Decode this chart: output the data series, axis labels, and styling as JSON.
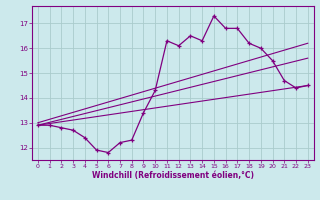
{
  "xlabel": "Windchill (Refroidissement éolien,°C)",
  "background_color": "#cce9ec",
  "line_color": "#800080",
  "grid_color": "#aacccc",
  "xlim": [
    -0.5,
    23.5
  ],
  "ylim": [
    11.5,
    17.7
  ],
  "yticks": [
    12,
    13,
    14,
    15,
    16,
    17
  ],
  "xticks": [
    0,
    1,
    2,
    3,
    4,
    5,
    6,
    7,
    8,
    9,
    10,
    11,
    12,
    13,
    14,
    15,
    16,
    17,
    18,
    19,
    20,
    21,
    22,
    23
  ],
  "hours": [
    0,
    1,
    2,
    3,
    4,
    5,
    6,
    7,
    8,
    9,
    10,
    11,
    12,
    13,
    14,
    15,
    16,
    17,
    18,
    19,
    20,
    21,
    22,
    23
  ],
  "temp": [
    12.9,
    12.9,
    12.8,
    12.7,
    12.4,
    11.9,
    11.8,
    12.2,
    12.3,
    13.4,
    14.3,
    16.3,
    16.1,
    16.5,
    16.3,
    17.3,
    16.8,
    16.8,
    16.2,
    16.0,
    15.5,
    14.7,
    14.4,
    14.5
  ],
  "line1_x": [
    0,
    23
  ],
  "line1_y": [
    13.0,
    16.2
  ],
  "line2_x": [
    0,
    23
  ],
  "line2_y": [
    12.9,
    15.6
  ],
  "line3_x": [
    0,
    23
  ],
  "line3_y": [
    12.9,
    14.5
  ]
}
